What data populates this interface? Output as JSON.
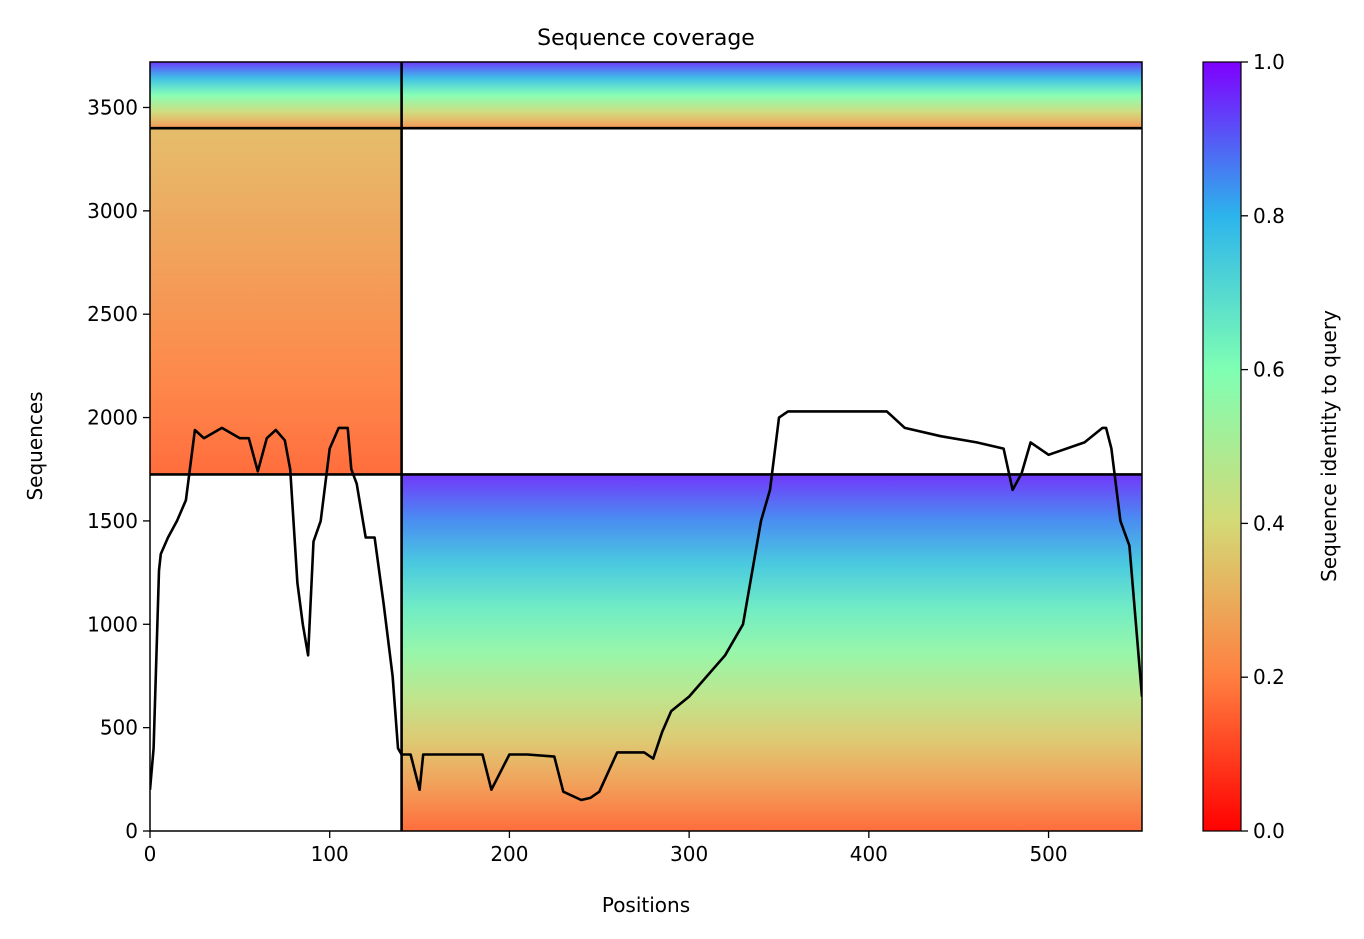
{
  "chart_data": {
    "type": "heatmap",
    "title": "Sequence coverage",
    "xlabel": "Positions",
    "ylabel": "Sequences",
    "xlim": [
      0,
      552
    ],
    "ylim": [
      0,
      3720
    ],
    "xticks": [
      0,
      100,
      200,
      300,
      400,
      500
    ],
    "yticks": [
      0,
      500,
      1000,
      1500,
      2000,
      2500,
      3000,
      3500
    ],
    "grid": false,
    "colorbar": {
      "label": "Sequence identity to query",
      "range": [
        0,
        1
      ],
      "ticks": [
        "0.0",
        "0.2",
        "0.4",
        "0.6",
        "0.8",
        "1.0"
      ],
      "colormap": "rainbow",
      "stops": [
        "#ff0000",
        "#ff7f40",
        "#d4d976",
        "#7fffb3",
        "#2cb4ec",
        "#7f00ff"
      ]
    },
    "domain_boundaries": {
      "vertical_x": 140,
      "horizontal_y": [
        1725,
        3400
      ]
    },
    "blocks": [
      {
        "x": [
          0,
          140
        ],
        "y": [
          1725,
          3400
        ],
        "identity_bottom": 0.16,
        "identity_top": 0.33
      },
      {
        "x": [
          0,
          140
        ],
        "y": [
          3400,
          3720
        ],
        "identity_bottom": 0.24,
        "identity_top": 0.95
      },
      {
        "x": [
          140,
          552
        ],
        "y": [
          3400,
          3720
        ],
        "identity_bottom": 0.24,
        "identity_top": 0.95
      },
      {
        "x": [
          140,
          552
        ],
        "y": [
          0,
          1725
        ],
        "identity_bottom": 0.16,
        "identity_top": 0.95
      }
    ],
    "coverage_line": {
      "color": "#000000",
      "x": [
        0,
        2,
        5,
        6,
        10,
        15,
        20,
        25,
        30,
        40,
        50,
        55,
        60,
        65,
        70,
        75,
        78,
        82,
        85,
        88,
        91,
        95,
        100,
        105,
        110,
        112,
        115,
        120,
        125,
        130,
        135,
        138,
        140,
        145,
        150,
        152,
        160,
        170,
        185,
        190,
        200,
        210,
        225,
        230,
        240,
        245,
        250,
        260,
        275,
        280,
        285,
        290,
        300,
        320,
        330,
        335,
        340,
        345,
        350,
        355,
        370,
        410,
        420,
        440,
        460,
        475,
        480,
        485,
        490,
        500,
        520,
        530,
        532,
        535,
        540,
        545,
        552
      ],
      "y": [
        200,
        400,
        1260,
        1340,
        1420,
        1500,
        1600,
        1940,
        1900,
        1950,
        1900,
        1900,
        1740,
        1900,
        1940,
        1890,
        1750,
        1200,
        1000,
        850,
        1400,
        1500,
        1850,
        1950,
        1950,
        1750,
        1680,
        1420,
        1420,
        1100,
        750,
        400,
        370,
        370,
        200,
        370,
        370,
        370,
        370,
        200,
        370,
        370,
        360,
        190,
        150,
        160,
        190,
        380,
        380,
        350,
        480,
        580,
        650,
        850,
        1000,
        1250,
        1500,
        1650,
        2000,
        2030,
        2030,
        2030,
        1950,
        1910,
        1880,
        1850,
        1650,
        1730,
        1880,
        1820,
        1880,
        1950,
        1950,
        1850,
        1500,
        1380,
        650
      ]
    }
  }
}
